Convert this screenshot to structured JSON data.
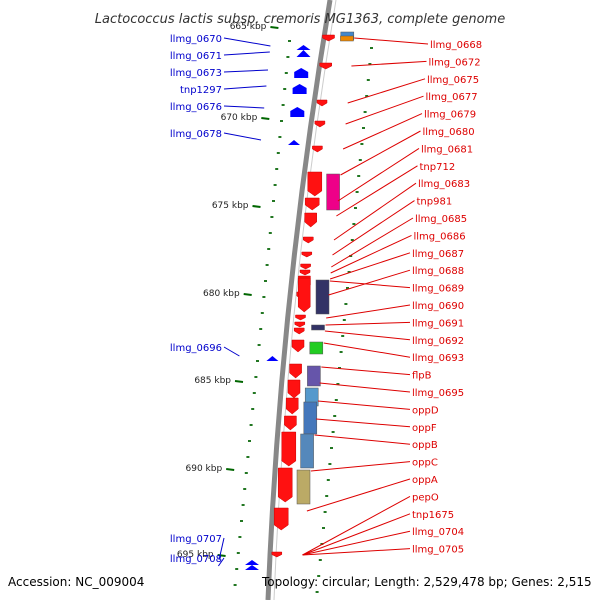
{
  "title": "Lactococcus lactis subsp. cremoris MG1363, complete genome",
  "footer": {
    "accession": "Accession: NC_009004",
    "topology": "Topology: circular; Length: 2,529,478 bp; Genes: 2,515"
  },
  "colors": {
    "left_label": "#0000cc",
    "right_label": "#dd0000",
    "tick": "#006600",
    "backbone": "#888888"
  },
  "ticks": [
    "665 kbp",
    "670 kbp",
    "675 kbp",
    "680 kbp",
    "685 kbp",
    "690 kbp",
    "695 kbp"
  ],
  "left_labels": [
    "llmg_0670",
    "llmg_0671",
    "llmg_0673",
    "tnp1297",
    "llmg_0676",
    "llmg_0678",
    "llmg_0696",
    "llmg_0707",
    "llmg_0708"
  ],
  "right_labels": [
    "llmg_0668",
    "llmg_0672",
    "llmg_0675",
    "llmg_0677",
    "llmg_0679",
    "llmg_0680",
    "llmg_0681",
    "tnp712",
    "llmg_0683",
    "tnp981",
    "llmg_0685",
    "llmg_0686",
    "llmg_0687",
    "llmg_0688",
    "llmg_0689",
    "llmg_0690",
    "llmg_0691",
    "llmg_0692",
    "llmg_0693",
    "flpB",
    "llmg_0695",
    "oppD",
    "oppF",
    "oppB",
    "oppC",
    "oppA",
    "pepO",
    "tnp1675",
    "llmg_0704",
    "llmg_0705"
  ]
}
